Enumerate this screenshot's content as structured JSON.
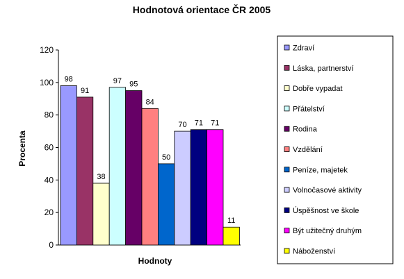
{
  "chart_data": {
    "type": "bar",
    "title": "Hodnotová orientace ČR 2005",
    "xlabel": "Hodnoty",
    "ylabel": "Procenta",
    "ylim": [
      0,
      120
    ],
    "yticks": [
      0,
      20,
      40,
      60,
      80,
      100,
      120
    ],
    "grid": false,
    "legend_position": "right",
    "series": [
      {
        "name": "Zdraví",
        "value": 98,
        "color": "#9999FF"
      },
      {
        "name": "Láska, partnerství",
        "value": 91,
        "color": "#993366"
      },
      {
        "name": "Dobře vypadat",
        "value": 38,
        "color": "#FFFFCC"
      },
      {
        "name": "Přátelství",
        "value": 97,
        "color": "#CCFFFF"
      },
      {
        "name": "Rodina",
        "value": 95,
        "color": "#660066"
      },
      {
        "name": "Vzdělání",
        "value": 84,
        "color": "#FF8080"
      },
      {
        "name": "Peníze, majetek",
        "value": 50,
        "color": "#0066CC"
      },
      {
        "name": "Volnočasové aktivity",
        "value": 70,
        "color": "#CCCCFF"
      },
      {
        "name": "Úspěšnost ve škole",
        "value": 71,
        "color": "#000080"
      },
      {
        "name": "Být užitečný druhým",
        "value": 71,
        "color": "#FF00FF"
      },
      {
        "name": "Náboženství",
        "value": 11,
        "color": "#FFFF00"
      }
    ]
  }
}
